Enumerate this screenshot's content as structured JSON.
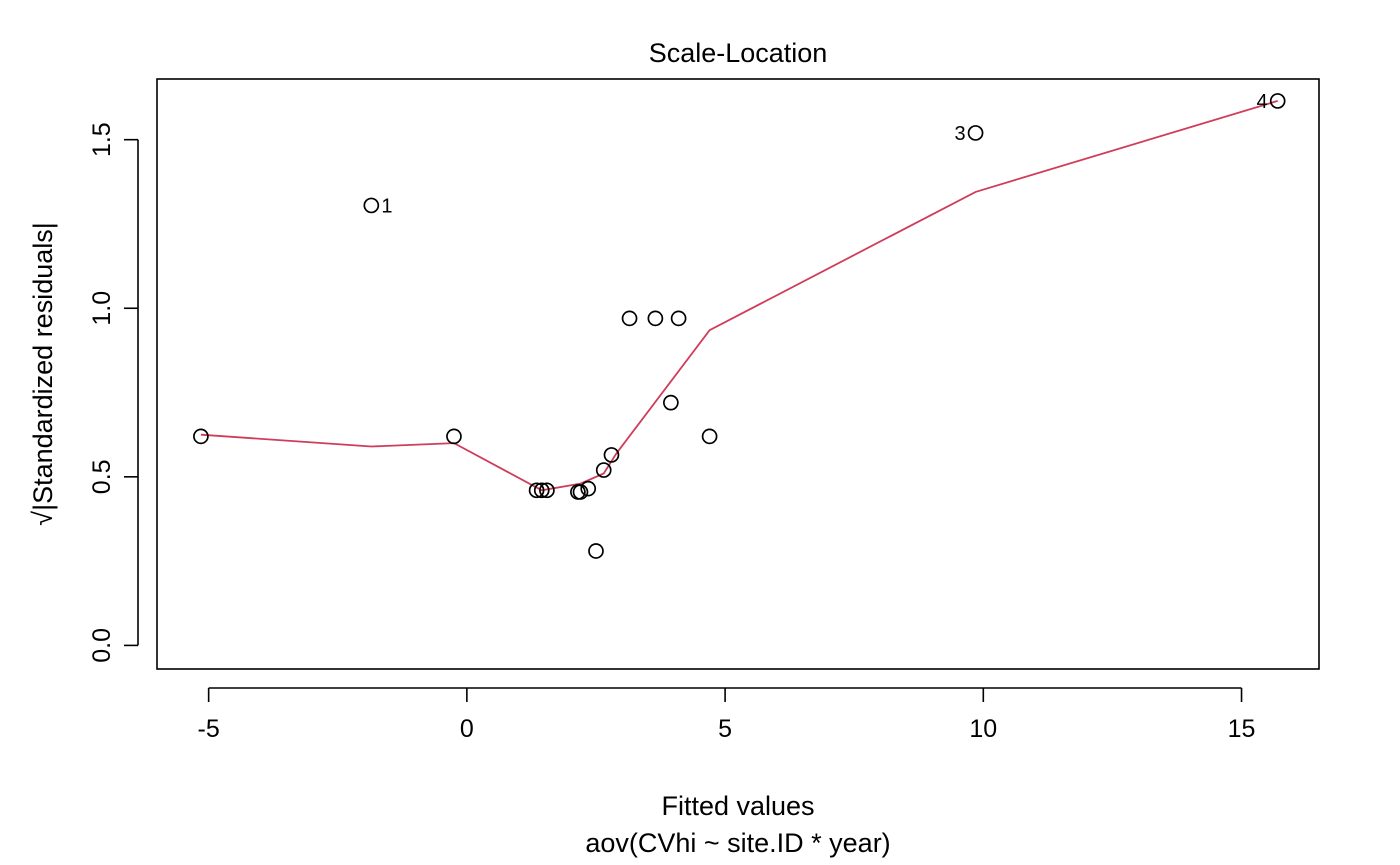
{
  "chart_data": {
    "type": "scatter",
    "title": "Scale-Location",
    "xlabel": "Fitted values",
    "xsublabel": "aov(CVhi ~ site.ID * year)",
    "ylabel": "√|Standardized residuals|",
    "xlim": [
      -6.0,
      16.5
    ],
    "ylim": [
      -0.07,
      1.68
    ],
    "xticks": [
      -5,
      0,
      5,
      10,
      15
    ],
    "xtick_labels": [
      "-5",
      "0",
      "5",
      "10",
      "15"
    ],
    "yticks": [
      0.0,
      0.5,
      1.0,
      1.5
    ],
    "ytick_labels": [
      "0.0",
      "0.5",
      "1.0",
      "1.5"
    ],
    "grid": false,
    "point_color": "#000000",
    "smooth_color": "#d03d5b",
    "points": [
      {
        "x": -5.15,
        "y": 0.62
      },
      {
        "x": -1.85,
        "y": 1.305,
        "label": "1"
      },
      {
        "x": -0.25,
        "y": 0.62
      },
      {
        "x": 1.35,
        "y": 0.46
      },
      {
        "x": 1.45,
        "y": 0.46
      },
      {
        "x": 1.55,
        "y": 0.46
      },
      {
        "x": 2.15,
        "y": 0.455
      },
      {
        "x": 2.2,
        "y": 0.455
      },
      {
        "x": 2.35,
        "y": 0.465
      },
      {
        "x": 2.5,
        "y": 0.28
      },
      {
        "x": 2.65,
        "y": 0.52
      },
      {
        "x": 2.8,
        "y": 0.565
      },
      {
        "x": 3.15,
        "y": 0.97
      },
      {
        "x": 3.65,
        "y": 0.97
      },
      {
        "x": 4.1,
        "y": 0.97
      },
      {
        "x": 3.95,
        "y": 0.72
      },
      {
        "x": 4.7,
        "y": 0.62
      },
      {
        "x": 9.85,
        "y": 1.52,
        "label": "3"
      },
      {
        "x": 15.7,
        "y": 1.615,
        "label": "4"
      }
    ],
    "smooth": [
      {
        "x": -5.15,
        "y": 0.625
      },
      {
        "x": -1.85,
        "y": 0.59
      },
      {
        "x": -0.25,
        "y": 0.6
      },
      {
        "x": 1.45,
        "y": 0.46
      },
      {
        "x": 2.2,
        "y": 0.48
      },
      {
        "x": 2.65,
        "y": 0.51
      },
      {
        "x": 2.9,
        "y": 0.57
      },
      {
        "x": 4.7,
        "y": 0.935
      },
      {
        "x": 9.85,
        "y": 1.345
      },
      {
        "x": 15.7,
        "y": 1.615
      }
    ]
  }
}
